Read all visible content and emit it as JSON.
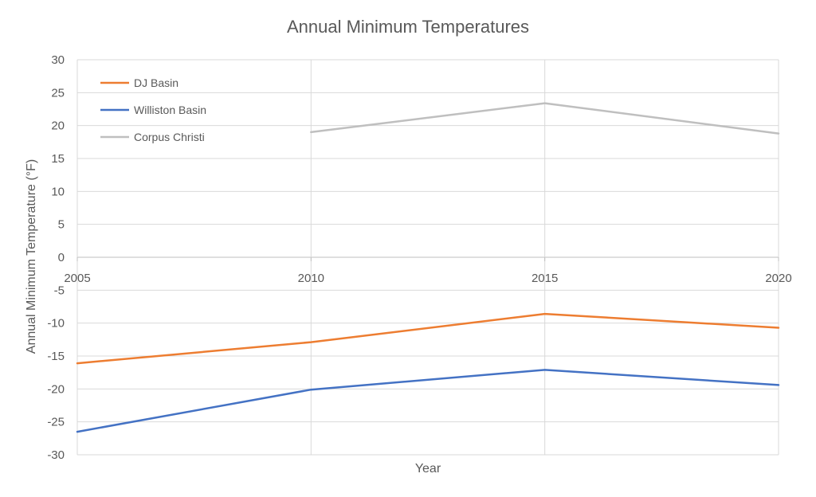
{
  "chart_data": {
    "type": "line",
    "title": "Annual Minimum Temperatures",
    "xlabel": "Year",
    "ylabel": "Annual Minimum Temperature (°F)",
    "x": [
      2005,
      2010,
      2015,
      2020
    ],
    "xlim": [
      2005,
      2020
    ],
    "ylim": [
      -30,
      30
    ],
    "y_ticks": [
      30,
      25,
      20,
      15,
      10,
      5,
      0,
      -5,
      -10,
      -15,
      -20,
      -25,
      -30
    ],
    "x_ticks": [
      2005,
      2010,
      2015,
      2020
    ],
    "grid": true,
    "legend_position": "top-left",
    "series": [
      {
        "name": "DJ Basin",
        "color": "#ED7D31",
        "values": [
          -16.1,
          -12.9,
          -8.6,
          -10.7
        ]
      },
      {
        "name": "Williston Basin",
        "color": "#4472C4",
        "values": [
          -26.5,
          -20.1,
          -17.1,
          -19.4
        ]
      },
      {
        "name": "Corpus Christi",
        "color": "#BFBFBF",
        "values": [
          null,
          19.0,
          23.4,
          18.8
        ]
      }
    ]
  }
}
